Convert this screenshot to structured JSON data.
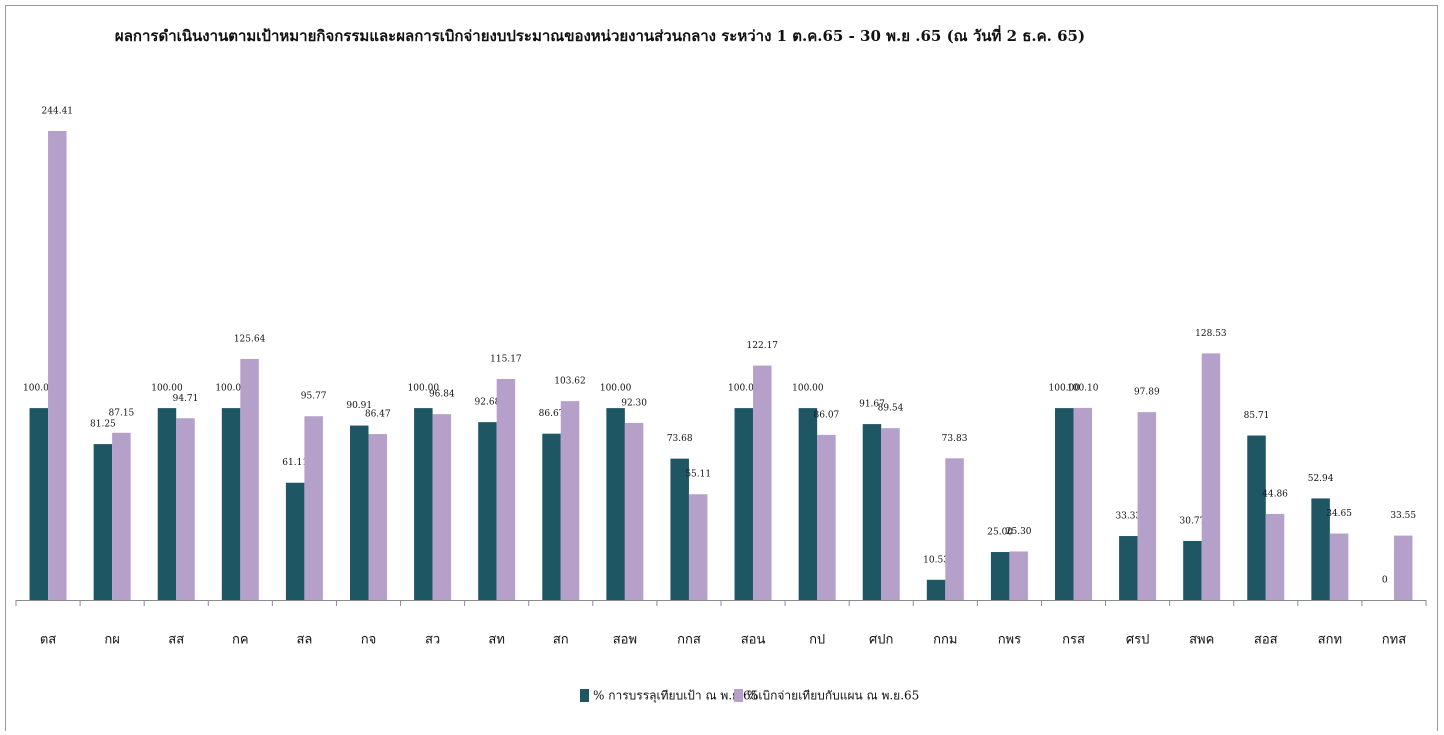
{
  "chart_data": {
    "type": "bar",
    "title": "ผลการดำเนินงานตามเป้าหมายกิจกรรมและผลการเบิกจ่ายงบประมาณของหน่วยงานส่วนกลาง ระหว่าง 1 ต.ค.65 - 30 พ.ย .65 (ณ วันที่ 2 ธ.ค. 65)",
    "categories": [
      "ตส",
      "กผ",
      "สส",
      "กค",
      "สล",
      "กจ",
      "สว",
      "สท",
      "สก",
      "สอพ",
      "กกส",
      "สอน",
      "กป",
      "ศปก",
      "กกม",
      "กพร",
      "กรส",
      "ศรป",
      "สพค",
      "สอส",
      "สกท",
      "กทส"
    ],
    "series": [
      {
        "name": "% การบรรลุเทียบเป้า ณ พ.ย.65",
        "color": "#1f5663",
        "values": [
          100.0,
          81.25,
          100.0,
          100.0,
          61.11,
          90.91,
          100.0,
          92.68,
          86.67,
          100.0,
          73.68,
          100.0,
          100.0,
          91.67,
          10.53,
          25.0,
          100.0,
          33.33,
          30.77,
          85.71,
          52.94,
          0
        ],
        "value_labels": [
          "100.00",
          "81.25",
          "100.00",
          "100.00",
          "61.11",
          "90.91",
          "100.00",
          "92.68",
          "86.67",
          "100.00",
          "73.68",
          "100.00",
          "100.00",
          "91.67",
          "10.53",
          "25.00",
          "100.00",
          "33.33",
          "30.77",
          "85.71",
          "52.94",
          "0"
        ]
      },
      {
        "name": "%เบิกจ่ายเทียบกับแผน ณ พ.ย.65",
        "color": "#b4a0c8",
        "values": [
          244.41,
          87.15,
          94.71,
          125.64,
          95.77,
          86.47,
          96.84,
          115.17,
          103.62,
          92.3,
          55.11,
          122.17,
          86.07,
          89.54,
          73.83,
          25.3,
          100.1,
          97.89,
          128.53,
          44.86,
          34.65,
          33.55
        ],
        "value_labels": [
          "244.41",
          "87.15",
          "94.71",
          "125.64",
          "95.77",
          "86.47",
          "96.84",
          "115.17",
          "103.62",
          "92.30",
          "55.11",
          "122.17",
          "86.07",
          "89.54",
          "73.83",
          "25.30",
          "100.10",
          "97.89",
          "128.53",
          "44.86",
          "34.65",
          "33.55"
        ]
      }
    ],
    "legend": "bottom"
  }
}
